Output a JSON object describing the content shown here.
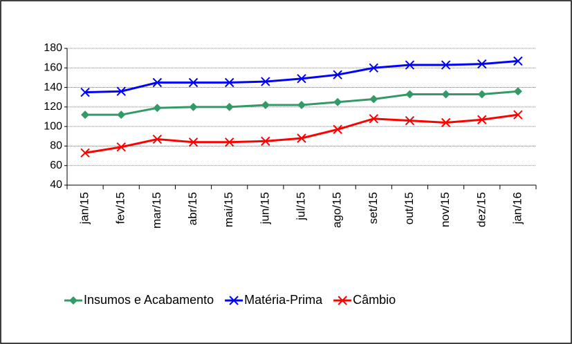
{
  "chart_data": {
    "type": "line",
    "categories": [
      "jan/15",
      "fev/15",
      "mar/15",
      "abr/15",
      "mai/15",
      "jun/15",
      "jul/15",
      "ago/15",
      "set/15",
      "out/15",
      "nov/15",
      "dez/15",
      "jan/16"
    ],
    "series": [
      {
        "name": "Insumos e Acabamento",
        "color": "#339966",
        "marker": "diamond",
        "values": [
          112,
          112,
          119,
          120,
          120,
          122,
          122,
          125,
          128,
          133,
          133,
          133,
          136
        ]
      },
      {
        "name": "Matéria-Prima",
        "color": "#0000ff",
        "marker": "x",
        "values": [
          135,
          136,
          145,
          145,
          145,
          146,
          149,
          153,
          160,
          163,
          163,
          164,
          167
        ]
      },
      {
        "name": "Câmbio",
        "color": "#ff0000",
        "marker": "x",
        "values": [
          73,
          79,
          87,
          84,
          84,
          85,
          88,
          97,
          108,
          106,
          104,
          107,
          112
        ]
      }
    ],
    "ylim": [
      40,
      180
    ],
    "yticks": [
      40,
      60,
      80,
      100,
      120,
      140,
      160,
      180
    ],
    "grid": true,
    "legend": "bottom"
  }
}
